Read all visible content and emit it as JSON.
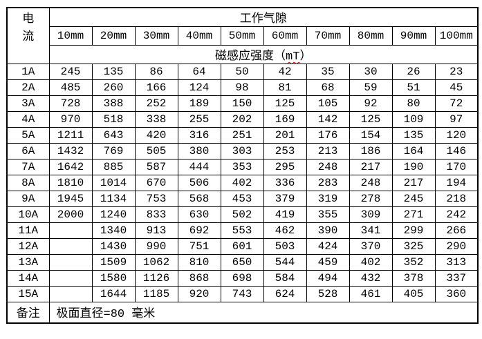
{
  "chart_data": {
    "type": "table",
    "corner_header": "电流",
    "group_header": "工作气隙",
    "unit_header": {
      "prefix": "磁感应强度（",
      "unit": "mT",
      "suffix": "）"
    },
    "columns": [
      "10mm",
      "20mm",
      "30mm",
      "40mm",
      "50mm",
      "60mm",
      "70mm",
      "80mm",
      "90mm",
      "100mm"
    ],
    "rows": [
      {
        "current": "1A",
        "values": [
          "245",
          "135",
          "86",
          "64",
          "50",
          "42",
          "35",
          "30",
          "26",
          "23"
        ]
      },
      {
        "current": "2A",
        "values": [
          "485",
          "260",
          "166",
          "124",
          "98",
          "81",
          "68",
          "59",
          "51",
          "45"
        ]
      },
      {
        "current": "3A",
        "values": [
          "728",
          "388",
          "252",
          "189",
          "150",
          "125",
          "105",
          "92",
          "80",
          "72"
        ]
      },
      {
        "current": "4A",
        "values": [
          "970",
          "518",
          "338",
          "255",
          "202",
          "169",
          "142",
          "125",
          "109",
          "97"
        ]
      },
      {
        "current": "5A",
        "values": [
          "1211",
          "643",
          "420",
          "316",
          "251",
          "201",
          "176",
          "154",
          "135",
          "120"
        ]
      },
      {
        "current": "6A",
        "values": [
          "1432",
          "769",
          "505",
          "380",
          "303",
          "253",
          "213",
          "186",
          "164",
          "146"
        ]
      },
      {
        "current": "7A",
        "values": [
          "1642",
          "885",
          "587",
          "444",
          "353",
          "295",
          "248",
          "217",
          "190",
          "170"
        ]
      },
      {
        "current": "8A",
        "values": [
          "1810",
          "1014",
          "670",
          "506",
          "402",
          "336",
          "283",
          "248",
          "217",
          "194"
        ]
      },
      {
        "current": "9A",
        "values": [
          "1945",
          "1134",
          "753",
          "568",
          "453",
          "379",
          "319",
          "278",
          "245",
          "218"
        ]
      },
      {
        "current": "10A",
        "values": [
          "2000",
          "1240",
          "833",
          "630",
          "502",
          "419",
          "355",
          "309",
          "271",
          "242"
        ]
      },
      {
        "current": "11A",
        "values": [
          "",
          "1340",
          "913",
          "692",
          "553",
          "462",
          "390",
          "341",
          "299",
          "266"
        ]
      },
      {
        "current": "12A",
        "values": [
          "",
          "1430",
          "990",
          "751",
          "601",
          "503",
          "424",
          "370",
          "325",
          "290"
        ]
      },
      {
        "current": "13A",
        "values": [
          "",
          "1509",
          "1062",
          "810",
          "650",
          "544",
          "459",
          "402",
          "352",
          "313"
        ]
      },
      {
        "current": "14A",
        "values": [
          "",
          "1580",
          "1126",
          "868",
          "698",
          "584",
          "494",
          "432",
          "378",
          "337"
        ]
      },
      {
        "current": "15A",
        "values": [
          "",
          "1644",
          "1185",
          "920",
          "743",
          "624",
          "528",
          "461",
          "405",
          "360"
        ]
      }
    ],
    "remark": {
      "label": "备注",
      "text": "极面直径=80 毫米"
    }
  },
  "colors": {
    "background": "#ffffff",
    "border": "#000000",
    "text": "#000000",
    "spellcheck_underline": "#e00000"
  }
}
